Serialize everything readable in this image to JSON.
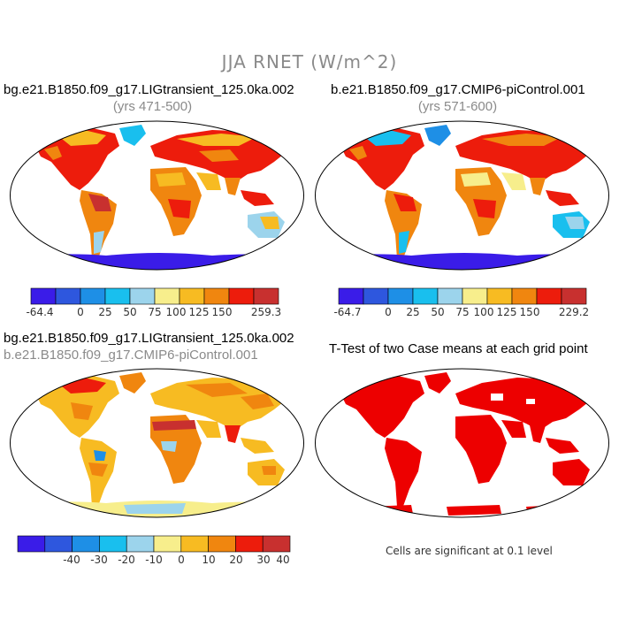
{
  "title": "JJA RNET (W/m^2)",
  "panels": {
    "p1": {
      "title": "bg.e21.B1850.f09_g17.LIGtransient_125.0ka.002",
      "subtitle": "(yrs 471-500)"
    },
    "p2": {
      "title": "b.e21.B1850.f09_g17.CMIP6-piControl.001",
      "subtitle": "(yrs 571-600)"
    },
    "p3": {
      "title": "bg.e21.B1850.f09_g17.LIGtransient_125.0ka.002",
      "subtitle": "b.e21.B1850.f09_g17.CMIP6-piControl.001"
    },
    "p4": {
      "title": "T-Test of two Case means at each grid point",
      "note": "Cells are significant at 0.1 level"
    }
  },
  "colorbars": {
    "cb1": {
      "min": "-64.4",
      "max": "259.3",
      "ticks": [
        "0",
        "25",
        "50",
        "75",
        "100",
        "125",
        "150"
      ]
    },
    "cb2": {
      "min": "-64.7",
      "max": "229.2",
      "ticks": [
        "0",
        "25",
        "50",
        "75",
        "100",
        "125",
        "150"
      ]
    },
    "cb3": {
      "ticks": [
        "-40",
        "-30",
        "-20",
        "-10",
        "0",
        "10",
        "20",
        "30",
        "40"
      ]
    }
  },
  "colors": {
    "abs_scale": [
      "#3a1ce8",
      "#2e57de",
      "#1e8fe6",
      "#19bfee",
      "#9cd4ec",
      "#f7ee8c",
      "#f7bb22",
      "#f0860f",
      "#ed1c0c",
      "#c8302f"
    ],
    "diff_scale": [
      "#3a1ce8",
      "#2e57de",
      "#1e8fe6",
      "#19bfee",
      "#9cd4ec",
      "#f7ee8c",
      "#f7bb22",
      "#f0860f",
      "#ed1c0c",
      "#c8302f"
    ],
    "significant": "#ed0000"
  }
}
